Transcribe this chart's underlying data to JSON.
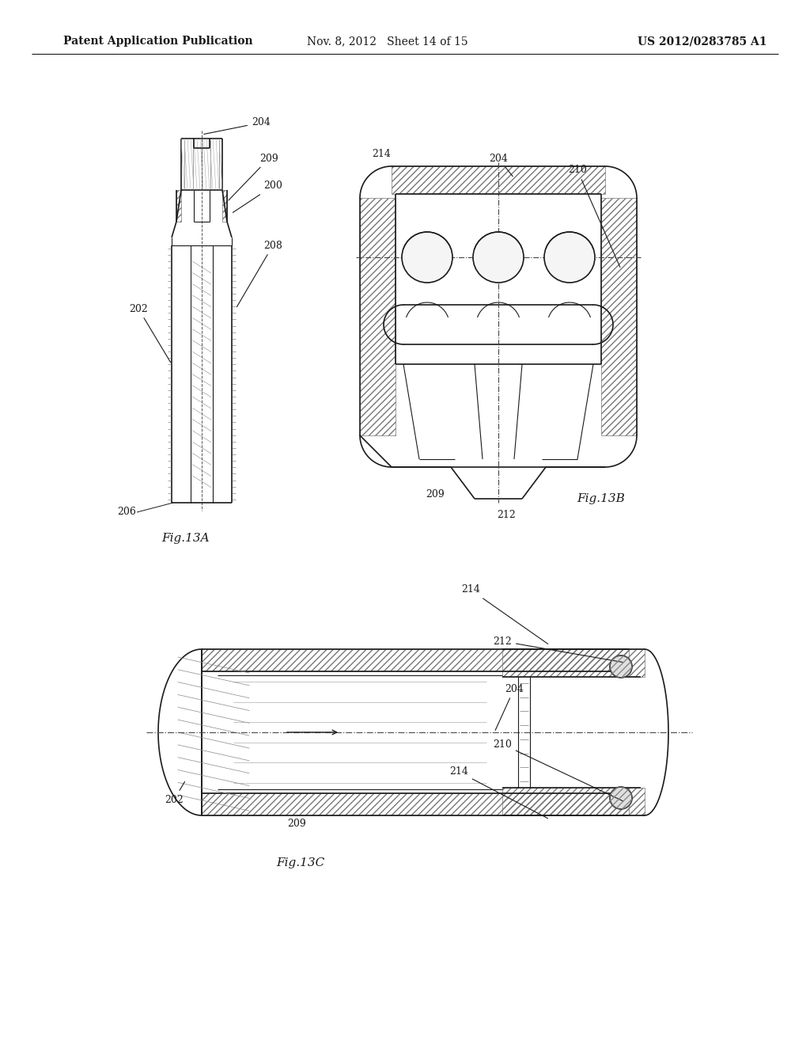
{
  "background_color": "#ffffff",
  "header_left": "Patent Application Publication",
  "header_center": "Nov. 8, 2012   Sheet 14 of 15",
  "header_right": "US 2012/0283785 A1",
  "fig13a_label": "Fig.13A",
  "fig13b_label": "Fig.13B",
  "fig13c_label": "Fig.13C",
  "line_color": "#1a1a1a",
  "hatch_color": "#555555"
}
